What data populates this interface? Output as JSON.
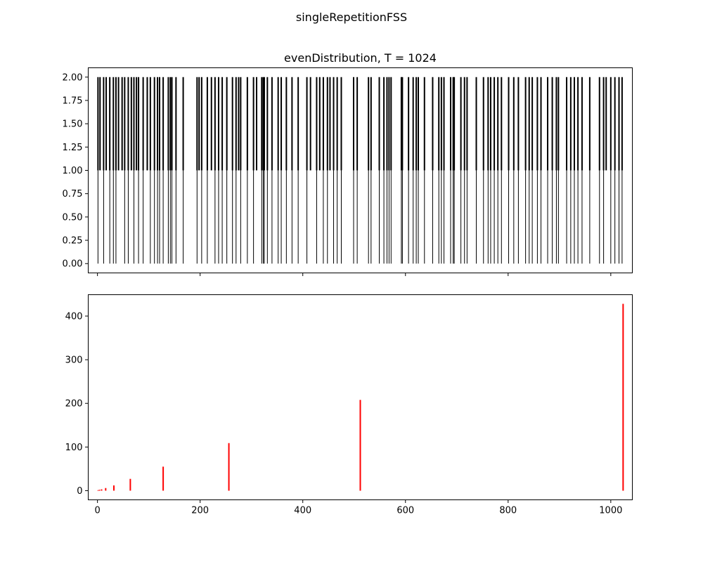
{
  "figure": {
    "suptitle": "singleRepetitionFSS"
  },
  "chart_data": [
    {
      "type": "event-lines",
      "title": "evenDistribution, T = 1024",
      "xlabel": "",
      "ylabel": "",
      "xlim": [
        -18,
        1042
      ],
      "ylim": [
        -0.1,
        2.1
      ],
      "yticks": [
        0.0,
        0.25,
        0.5,
        0.75,
        1.0,
        1.25,
        1.5,
        1.75,
        2.0
      ],
      "ytick_labels": [
        "0.00",
        "0.25",
        "0.50",
        "0.75",
        "1.00",
        "1.25",
        "1.50",
        "1.75",
        "2.00"
      ],
      "xticks": [
        0,
        200,
        400,
        600,
        800,
        1000
      ],
      "xtick_labels_shown": false,
      "grid": false,
      "series": [
        {
          "color": "#000000",
          "linewidth": 1,
          "y_range": [
            0,
            1
          ],
          "x": [
            1,
            12,
            24,
            31,
            36,
            53,
            60,
            71,
            80,
            89,
            103,
            111,
            117,
            121,
            128,
            138,
            142,
            145,
            153,
            167,
            194,
            203,
            214,
            229,
            236,
            243,
            252,
            263,
            270,
            279,
            292,
            304,
            320,
            323,
            325,
            331,
            340,
            352,
            358,
            368,
            379,
            391,
            408,
            427,
            440,
            448,
            460,
            467,
            475,
            499,
            506,
            528,
            533,
            549,
            558,
            564,
            568,
            572,
            592,
            594,
            606,
            615,
            621,
            625,
            637,
            653,
            665,
            670,
            675,
            688,
            693,
            695,
            708,
            715,
            720,
            738,
            752,
            761,
            766,
            773,
            780,
            787,
            801,
            811,
            820,
            834,
            841,
            847,
            857,
            864,
            877,
            886,
            894,
            898,
            914,
            922,
            929,
            936,
            944,
            959,
            978,
            986,
            1000,
            1008,
            1016,
            1022
          ]
        },
        {
          "color": "#000000",
          "linewidth": 2,
          "y_range": [
            1,
            2
          ],
          "x": [
            1,
            5,
            12,
            17,
            24,
            31,
            36,
            41,
            48,
            53,
            60,
            66,
            71,
            76,
            80,
            89,
            97,
            103,
            111,
            117,
            121,
            128,
            138,
            142,
            145,
            153,
            167,
            194,
            198,
            203,
            214,
            222,
            229,
            236,
            243,
            252,
            263,
            270,
            275,
            279,
            292,
            304,
            310,
            320,
            323,
            325,
            331,
            340,
            352,
            358,
            368,
            379,
            391,
            408,
            415,
            427,
            433,
            440,
            448,
            453,
            460,
            467,
            475,
            499,
            506,
            528,
            533,
            549,
            558,
            564,
            568,
            572,
            592,
            594,
            606,
            615,
            621,
            625,
            637,
            653,
            665,
            670,
            675,
            688,
            693,
            695,
            708,
            715,
            720,
            738,
            752,
            761,
            766,
            773,
            780,
            787,
            801,
            811,
            820,
            834,
            841,
            847,
            857,
            864,
            877,
            886,
            894,
            898,
            914,
            922,
            929,
            936,
            944,
            959,
            978,
            986,
            991,
            1000,
            1008,
            1016,
            1022
          ]
        }
      ]
    },
    {
      "type": "bar",
      "title": "",
      "xlabel": "",
      "ylabel": "",
      "xlim": [
        -18,
        1042
      ],
      "ylim": [
        -21,
        449
      ],
      "xticks": [
        0,
        200,
        400,
        600,
        800,
        1000
      ],
      "xtick_labels": [
        "0",
        "200",
        "400",
        "600",
        "800",
        "1000"
      ],
      "yticks": [
        0,
        100,
        200,
        300,
        400
      ],
      "ytick_labels": [
        "0",
        "100",
        "200",
        "300",
        "400"
      ],
      "grid": false,
      "series": [
        {
          "color": "#ff0000",
          "x": [
            1,
            2,
            4,
            8,
            16,
            32,
            64,
            128,
            256,
            512,
            1024
          ],
          "values": [
            1,
            1,
            2,
            3,
            6,
            12,
            27,
            55,
            109,
            208,
            428
          ]
        }
      ]
    }
  ]
}
